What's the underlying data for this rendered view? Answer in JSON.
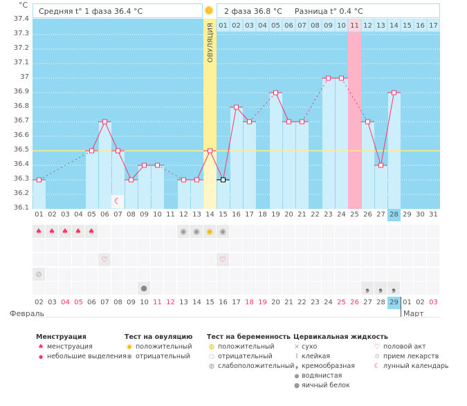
{
  "unit": "°C",
  "header": {
    "phase1": "Средняя t° 1 фаза 36.4 °C",
    "phase2": "2 фаза 36.8 °C",
    "diff": "Разница t° 0.4 °C",
    "ovulation_label": "ОВУЛЯЦИЯ"
  },
  "y_ticks": [
    "37.4",
    "37.3",
    "37.2",
    "37.1",
    "37",
    "36.9",
    "36.8",
    "36.7",
    "36.6",
    "36.5",
    "36.4",
    "36.3",
    "36.2",
    "36.1"
  ],
  "colors": {
    "background": "#92d8f2",
    "bar": "#cdeefb",
    "line": "#ff3366",
    "coverline": "#ffee88",
    "ovulation": "#fff09a",
    "highlight_pink": "#ffb3c6"
  },
  "chart_data": {
    "type": "line",
    "ylim": [
      36.1,
      37.4
    ],
    "coverline": 36.5,
    "ovulation_day": 14,
    "pink_day": 25,
    "days": [
      "01",
      "02",
      "03",
      "04",
      "05",
      "06",
      "07",
      "08",
      "09",
      "10",
      "11",
      "12",
      "13",
      "14",
      "15",
      "16",
      "17",
      "18",
      "19",
      "20",
      "21",
      "22",
      "23",
      "24",
      "25",
      "26",
      "27",
      "28",
      "29",
      "30",
      "31"
    ],
    "temps": [
      36.3,
      null,
      null,
      null,
      36.5,
      36.7,
      36.5,
      36.3,
      36.4,
      36.4,
      null,
      36.3,
      36.3,
      36.5,
      36.3,
      36.8,
      36.7,
      null,
      36.9,
      36.7,
      36.7,
      null,
      37.0,
      37.0,
      null,
      36.7,
      36.4,
      36.9,
      null,
      null,
      null
    ],
    "excluded_day": 15,
    "cycle_days_phase2": [
      "01",
      "02",
      "03",
      "04",
      "05",
      "06",
      "07",
      "08",
      "09",
      "10",
      "11",
      "12",
      "13",
      "14",
      "15",
      "16",
      "17"
    ]
  },
  "highlight_day_top": "28",
  "calendar_dates": [
    "02",
    "03",
    "04",
    "05",
    "06",
    "07",
    "08",
    "09",
    "10",
    "11",
    "12",
    "13",
    "14",
    "15",
    "16",
    "17",
    "18",
    "19",
    "20",
    "21",
    "22",
    "23",
    "24",
    "25",
    "26",
    "27",
    "28",
    "29",
    "01",
    "02",
    "03"
  ],
  "weekend_idx": [
    2,
    3,
    9,
    10,
    16,
    17,
    23,
    24,
    30
  ],
  "today_idx": 27,
  "months": {
    "feb": "Февраль",
    "mar": "Март"
  },
  "marks": {
    "menstruation": [
      1,
      2,
      3,
      4,
      5
    ],
    "ovulation_negative": [
      12,
      13,
      15
    ],
    "ovulation_positive": [
      14
    ],
    "intercourse": [
      6,
      15
    ],
    "medicine": [
      1
    ],
    "egg_white": [
      9
    ],
    "creamy": [
      26,
      27,
      28
    ],
    "moon": [
      7
    ]
  },
  "legend": {
    "menstruation": {
      "title": "Менструация",
      "items": [
        "менструация",
        "небольшие выделения"
      ]
    },
    "ovulation_test": {
      "title": "Тест на овуляцию",
      "items": [
        "положительный",
        "отрицательный"
      ]
    },
    "pregnancy_test": {
      "title": "Тест на беременность",
      "items": [
        "положительный",
        "отрицательный",
        "слабоположительный"
      ]
    },
    "cervical": {
      "title": "Цервикальная жидкость",
      "items": [
        "сухо",
        "клейкая",
        "кремообразная",
        "водянистая",
        "яичный белок"
      ]
    },
    "other": {
      "items": [
        "половой акт",
        "прием лекарств",
        "лунный календарь"
      ]
    }
  }
}
